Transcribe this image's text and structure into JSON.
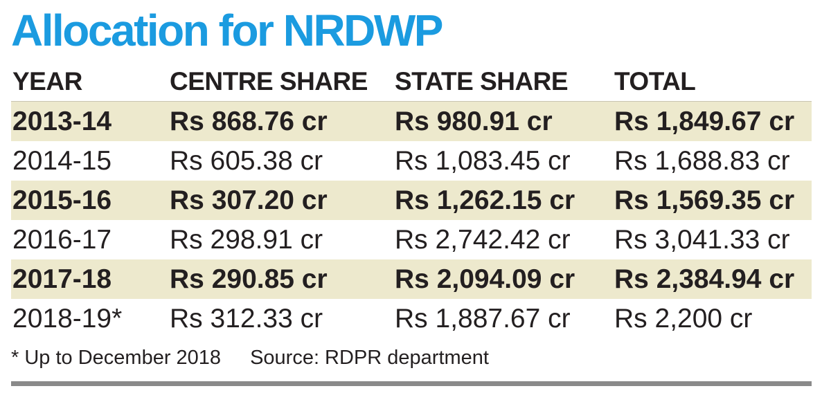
{
  "title": "Allocation for NRDWP",
  "table": {
    "headers": [
      "YEAR",
      "CENTRE SHARE",
      "STATE SHARE",
      "TOTAL"
    ],
    "rows": [
      {
        "year": "2013-14",
        "centre": "Rs 868.76 cr",
        "state": "Rs 980.91 cr",
        "total": "Rs 1,849.67 cr"
      },
      {
        "year": "2014-15",
        "centre": "Rs 605.38 cr",
        "state": "Rs 1,083.45 cr",
        "total": "Rs 1,688.83 cr"
      },
      {
        "year": "2015-16",
        "centre": "Rs 307.20 cr",
        "state": "Rs 1,262.15 cr",
        "total": "Rs 1,569.35 cr"
      },
      {
        "year": "2016-17",
        "centre": "Rs 298.91 cr",
        "state": "Rs 2,742.42 cr",
        "total": "Rs 3,041.33 cr"
      },
      {
        "year": "2017-18",
        "centre": "Rs 290.85 cr",
        "state": "Rs 2,094.09 cr",
        "total": "Rs 2,384.94 cr"
      },
      {
        "year": "2018-19*",
        "centre": "Rs 312.33 cr",
        "state": "Rs 1,887.67 cr",
        "total": "Rs 2,200 cr"
      }
    ]
  },
  "footnote": "* Up to December 2018",
  "source": "Source: RDPR department",
  "colors": {
    "title": "#1b9be0",
    "shaded_row": "#ede9cd",
    "rule": "#8a8a8a"
  }
}
